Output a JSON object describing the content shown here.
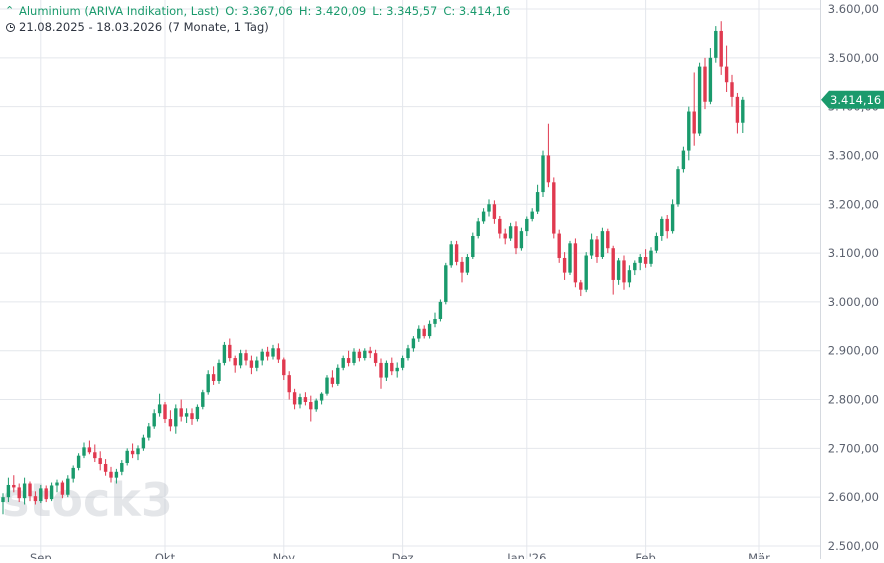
{
  "header": {
    "instrument": "Aluminium (ARIVA Indikation, Last)",
    "open": "O: 3.367,06",
    "high": "H: 3.420,09",
    "low": "L: 3.345,57",
    "close": "C: 3.414,16",
    "range": "21.08.2025 - 18.03.2026",
    "period": "(7 Monate, 1 Tag)"
  },
  "watermark": "stock3",
  "last_price_label": "3.414,16",
  "colors": {
    "up": "#1a9a6c",
    "down": "#e0394f",
    "grid": "#e4e7ec",
    "axis_text": "#5b616e"
  },
  "chart_data": {
    "type": "candlestick",
    "ylim": [
      2500,
      3600
    ],
    "y_ticks": [
      2500,
      2600,
      2700,
      2800,
      2900,
      3000,
      3100,
      3200,
      3300,
      3400,
      3500,
      3600
    ],
    "y_tick_labels": [
      "2.500,00",
      "2.600,00",
      "2.700,00",
      "2.800,00",
      "2.900,00",
      "3.000,00",
      "3.100,00",
      "3.200,00",
      "3.300,00",
      "3.400,00",
      "3.500,00",
      "3.600,00"
    ],
    "x_ticks": [
      "Sep",
      "Okt",
      "Nov",
      "Dez",
      "Jan '26",
      "Feb",
      "Mär"
    ],
    "x_tick_index": [
      7,
      30,
      52,
      74,
      97,
      119,
      140
    ],
    "last_value": 3414.16,
    "candles": [
      [
        2590,
        2608,
        2565,
        2600
      ],
      [
        2600,
        2640,
        2590,
        2625
      ],
      [
        2625,
        2645,
        2610,
        2620
      ],
      [
        2620,
        2628,
        2590,
        2598
      ],
      [
        2598,
        2640,
        2585,
        2628
      ],
      [
        2628,
        2632,
        2592,
        2602
      ],
      [
        2602,
        2612,
        2585,
        2592
      ],
      [
        2592,
        2625,
        2588,
        2618
      ],
      [
        2618,
        2624,
        2590,
        2596
      ],
      [
        2596,
        2630,
        2592,
        2624
      ],
      [
        2624,
        2636,
        2610,
        2630
      ],
      [
        2630,
        2634,
        2598,
        2605
      ],
      [
        2605,
        2645,
        2600,
        2638
      ],
      [
        2638,
        2665,
        2630,
        2660
      ],
      [
        2660,
        2690,
        2655,
        2685
      ],
      [
        2685,
        2712,
        2680,
        2702
      ],
      [
        2702,
        2716,
        2688,
        2692
      ],
      [
        2692,
        2708,
        2672,
        2680
      ],
      [
        2680,
        2694,
        2655,
        2668
      ],
      [
        2668,
        2678,
        2644,
        2652
      ],
      [
        2652,
        2662,
        2630,
        2640
      ],
      [
        2640,
        2658,
        2628,
        2652
      ],
      [
        2652,
        2676,
        2645,
        2670
      ],
      [
        2670,
        2700,
        2665,
        2695
      ],
      [
        2695,
        2710,
        2680,
        2688
      ],
      [
        2688,
        2706,
        2676,
        2700
      ],
      [
        2700,
        2728,
        2695,
        2722
      ],
      [
        2722,
        2752,
        2716,
        2745
      ],
      [
        2745,
        2780,
        2740,
        2772
      ],
      [
        2772,
        2812,
        2765,
        2790
      ],
      [
        2790,
        2795,
        2752,
        2760
      ],
      [
        2760,
        2778,
        2735,
        2745
      ],
      [
        2745,
        2790,
        2730,
        2782
      ],
      [
        2782,
        2800,
        2755,
        2765
      ],
      [
        2765,
        2782,
        2752,
        2772
      ],
      [
        2772,
        2782,
        2748,
        2760
      ],
      [
        2760,
        2790,
        2755,
        2785
      ],
      [
        2785,
        2820,
        2780,
        2815
      ],
      [
        2815,
        2860,
        2810,
        2852
      ],
      [
        2852,
        2868,
        2830,
        2838
      ],
      [
        2838,
        2882,
        2832,
        2875
      ],
      [
        2875,
        2918,
        2870,
        2912
      ],
      [
        2912,
        2925,
        2878,
        2885
      ],
      [
        2885,
        2890,
        2855,
        2870
      ],
      [
        2870,
        2902,
        2864,
        2895
      ],
      [
        2895,
        2902,
        2870,
        2880
      ],
      [
        2880,
        2890,
        2852,
        2865
      ],
      [
        2865,
        2888,
        2858,
        2880
      ],
      [
        2880,
        2904,
        2870,
        2898
      ],
      [
        2898,
        2908,
        2880,
        2888
      ],
      [
        2888,
        2912,
        2882,
        2905
      ],
      [
        2905,
        2915,
        2875,
        2882
      ],
      [
        2882,
        2886,
        2840,
        2850
      ],
      [
        2850,
        2858,
        2800,
        2815
      ],
      [
        2815,
        2822,
        2780,
        2790
      ],
      [
        2790,
        2812,
        2782,
        2805
      ],
      [
        2805,
        2815,
        2788,
        2795
      ],
      [
        2795,
        2808,
        2755,
        2780
      ],
      [
        2780,
        2802,
        2775,
        2798
      ],
      [
        2798,
        2815,
        2790,
        2812
      ],
      [
        2812,
        2850,
        2808,
        2845
      ],
      [
        2845,
        2860,
        2825,
        2832
      ],
      [
        2832,
        2872,
        2828,
        2865
      ],
      [
        2865,
        2890,
        2860,
        2885
      ],
      [
        2885,
        2900,
        2868,
        2875
      ],
      [
        2875,
        2905,
        2870,
        2898
      ],
      [
        2898,
        2904,
        2878,
        2885
      ],
      [
        2885,
        2905,
        2880,
        2900
      ],
      [
        2900,
        2908,
        2885,
        2895
      ],
      [
        2895,
        2902,
        2868,
        2875
      ],
      [
        2875,
        2884,
        2822,
        2845
      ],
      [
        2845,
        2880,
        2838,
        2875
      ],
      [
        2875,
        2886,
        2850,
        2858
      ],
      [
        2858,
        2876,
        2845,
        2865
      ],
      [
        2865,
        2890,
        2860,
        2885
      ],
      [
        2885,
        2912,
        2880,
        2905
      ],
      [
        2905,
        2930,
        2898,
        2925
      ],
      [
        2925,
        2952,
        2918,
        2945
      ],
      [
        2945,
        2952,
        2925,
        2930
      ],
      [
        2930,
        2962,
        2925,
        2955
      ],
      [
        2955,
        2978,
        2948,
        2965
      ],
      [
        2965,
        3005,
        2960,
        3000
      ],
      [
        3000,
        3080,
        2995,
        3075
      ],
      [
        3075,
        3125,
        3070,
        3118
      ],
      [
        3118,
        3125,
        3075,
        3082
      ],
      [
        3082,
        3092,
        3040,
        3060
      ],
      [
        3060,
        3098,
        3055,
        3092
      ],
      [
        3092,
        3142,
        3088,
        3135
      ],
      [
        3135,
        3172,
        3130,
        3165
      ],
      [
        3165,
        3192,
        3160,
        3185
      ],
      [
        3185,
        3210,
        3175,
        3200
      ],
      [
        3200,
        3208,
        3160,
        3170
      ],
      [
        3170,
        3176,
        3130,
        3140
      ],
      [
        3140,
        3150,
        3118,
        3130
      ],
      [
        3130,
        3162,
        3125,
        3155
      ],
      [
        3155,
        3165,
        3098,
        3110
      ],
      [
        3110,
        3152,
        3105,
        3145
      ],
      [
        3145,
        3175,
        3135,
        3170
      ],
      [
        3170,
        3192,
        3165,
        3185
      ],
      [
        3185,
        3240,
        3180,
        3225
      ],
      [
        3225,
        3310,
        3215,
        3300
      ],
      [
        3300,
        3365,
        3235,
        3245
      ],
      [
        3245,
        3255,
        3130,
        3140
      ],
      [
        3140,
        3148,
        3080,
        3090
      ],
      [
        3090,
        3102,
        3045,
        3060
      ],
      [
        3060,
        3125,
        3055,
        3120
      ],
      [
        3120,
        3130,
        3030,
        3040
      ],
      [
        3040,
        3045,
        3012,
        3025
      ],
      [
        3025,
        3102,
        3020,
        3095
      ],
      [
        3095,
        3140,
        3088,
        3128
      ],
      [
        3128,
        3135,
        3080,
        3092
      ],
      [
        3092,
        3152,
        3088,
        3145
      ],
      [
        3145,
        3150,
        3100,
        3110
      ],
      [
        3110,
        3115,
        3015,
        3045
      ],
      [
        3045,
        3090,
        3035,
        3085
      ],
      [
        3085,
        3095,
        3025,
        3040
      ],
      [
        3040,
        3075,
        3030,
        3065
      ],
      [
        3065,
        3085,
        3055,
        3080
      ],
      [
        3080,
        3098,
        3065,
        3092
      ],
      [
        3092,
        3108,
        3070,
        3078
      ],
      [
        3078,
        3112,
        3072,
        3105
      ],
      [
        3105,
        3142,
        3100,
        3135
      ],
      [
        3135,
        3175,
        3125,
        3170
      ],
      [
        3170,
        3178,
        3130,
        3145
      ],
      [
        3145,
        3210,
        3140,
        3200
      ],
      [
        3200,
        3278,
        3195,
        3272
      ],
      [
        3272,
        3318,
        3265,
        3310
      ],
      [
        3310,
        3400,
        3290,
        3390
      ],
      [
        3390,
        3470,
        3320,
        3345
      ],
      [
        3345,
        3490,
        3340,
        3482
      ],
      [
        3482,
        3500,
        3395,
        3410
      ],
      [
        3410,
        3520,
        3405,
        3500
      ],
      [
        3500,
        3565,
        3490,
        3555
      ],
      [
        3555,
        3575,
        3465,
        3482
      ],
      [
        3482,
        3525,
        3430,
        3450
      ],
      [
        3450,
        3465,
        3400,
        3420
      ],
      [
        3420,
        3428,
        3345,
        3367
      ],
      [
        3367,
        3420,
        3346,
        3414
      ]
    ]
  }
}
